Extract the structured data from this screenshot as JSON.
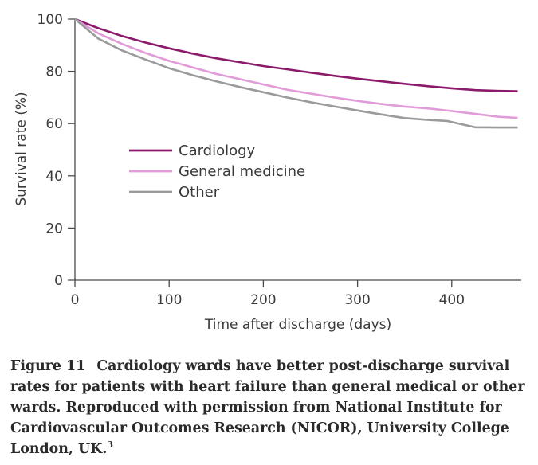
{
  "chart_data": {
    "type": "line",
    "title": "",
    "xlabel": "Time after discharge (days)",
    "ylabel": "Survival rate (%)",
    "xlim": [
      0,
      475
    ],
    "ylim": [
      0,
      100
    ],
    "xticks": [
      0,
      100,
      200,
      300,
      400
    ],
    "yticks": [
      0,
      20,
      40,
      60,
      80,
      100
    ],
    "legend_position": "center-left",
    "grid": false,
    "series": [
      {
        "name": "Cardiology",
        "color": "#8b1a6b",
        "points": [
          [
            0,
            100
          ],
          [
            25,
            96.5
          ],
          [
            50,
            93.5
          ],
          [
            75,
            91
          ],
          [
            100,
            88.8
          ],
          [
            125,
            86.8
          ],
          [
            150,
            85
          ],
          [
            175,
            83.5
          ],
          [
            200,
            82
          ],
          [
            225,
            80.8
          ],
          [
            250,
            79.5
          ],
          [
            275,
            78.3
          ],
          [
            300,
            77.2
          ],
          [
            325,
            76.2
          ],
          [
            350,
            75.2
          ],
          [
            375,
            74.3
          ],
          [
            400,
            73.5
          ],
          [
            425,
            72.8
          ],
          [
            450,
            72.5
          ],
          [
            470,
            72.4
          ]
        ]
      },
      {
        "name": "General medicine",
        "color": "#e19bd8",
        "points": [
          [
            0,
            100
          ],
          [
            25,
            94.5
          ],
          [
            50,
            90.5
          ],
          [
            75,
            87
          ],
          [
            100,
            84
          ],
          [
            125,
            81.5
          ],
          [
            150,
            79
          ],
          [
            175,
            77
          ],
          [
            200,
            75
          ],
          [
            225,
            73
          ],
          [
            250,
            71.5
          ],
          [
            275,
            70
          ],
          [
            300,
            68.7
          ],
          [
            325,
            67.5
          ],
          [
            350,
            66.5
          ],
          [
            375,
            65.8
          ],
          [
            400,
            64.8
          ],
          [
            425,
            63.7
          ],
          [
            450,
            62.6
          ],
          [
            470,
            62.2
          ]
        ]
      },
      {
        "name": "Other",
        "color": "#9b9b9b",
        "points": [
          [
            0,
            100
          ],
          [
            25,
            92.5
          ],
          [
            50,
            88
          ],
          [
            75,
            84.5
          ],
          [
            100,
            81.2
          ],
          [
            125,
            78.5
          ],
          [
            150,
            76.2
          ],
          [
            175,
            74
          ],
          [
            200,
            72
          ],
          [
            225,
            70
          ],
          [
            250,
            68.2
          ],
          [
            275,
            66.6
          ],
          [
            300,
            65
          ],
          [
            325,
            63.5
          ],
          [
            350,
            62.1
          ],
          [
            375,
            61.4
          ],
          [
            395,
            61
          ],
          [
            410,
            59.8
          ],
          [
            425,
            58.6
          ],
          [
            450,
            58.5
          ],
          [
            470,
            58.5
          ]
        ]
      }
    ]
  },
  "caption": {
    "figure_number": "Figure 11",
    "text": "Cardiology wards have better post-discharge survival rates for patients with heart failure than general medical or other wards. Reproduced with permission from National Institute for Cardiovascular Outcomes Research (NICOR), University College London, UK.",
    "superscript": "3"
  }
}
